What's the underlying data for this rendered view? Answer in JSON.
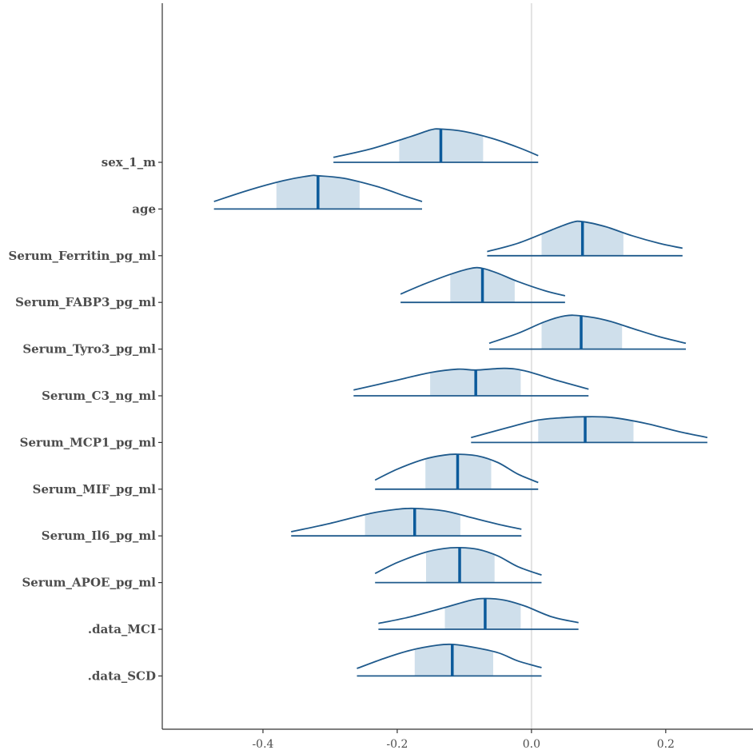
{
  "chart_data": {
    "type": "ridgeline",
    "xlim": [
      -0.55,
      0.33
    ],
    "x_ticks": [
      {
        "value": -0.4,
        "label": "-0.4"
      },
      {
        "value": -0.2,
        "label": "-0.2"
      },
      {
        "value": 0.0,
        "label": "0.0"
      },
      {
        "value": 0.2,
        "label": "0.2"
      }
    ],
    "reference_line": 0.0,
    "grid": false,
    "colors": {
      "line": "#1f5a8c",
      "fill": "#cfdfeb",
      "median": "#0b5a9b",
      "ref": "#e2e2e2",
      "axis": "#333333"
    },
    "series": [
      {
        "label": "sex_1_m",
        "min": -0.295,
        "max": 0.01,
        "q_low": -0.197,
        "q_high": -0.072,
        "median": -0.135,
        "density": [
          [
            -0.295,
            0.12
          ],
          [
            -0.24,
            0.32
          ],
          [
            -0.18,
            0.62
          ],
          [
            -0.15,
            0.78
          ],
          [
            -0.135,
            0.8
          ],
          [
            -0.1,
            0.74
          ],
          [
            -0.06,
            0.58
          ],
          [
            -0.02,
            0.36
          ],
          [
            0.01,
            0.16
          ]
        ]
      },
      {
        "label": "age",
        "min": -0.473,
        "max": -0.163,
        "q_low": -0.38,
        "q_high": -0.256,
        "median": -0.318,
        "density": [
          [
            -0.473,
            0.18
          ],
          [
            -0.42,
            0.46
          ],
          [
            -0.37,
            0.68
          ],
          [
            -0.33,
            0.8
          ],
          [
            -0.318,
            0.8
          ],
          [
            -0.28,
            0.74
          ],
          [
            -0.23,
            0.54
          ],
          [
            -0.19,
            0.32
          ],
          [
            -0.163,
            0.18
          ]
        ]
      },
      {
        "label": "Serum_Ferritin_pg_ml",
        "min": -0.066,
        "max": 0.225,
        "q_low": 0.015,
        "q_high": 0.137,
        "median": 0.076,
        "density": [
          [
            -0.066,
            0.1
          ],
          [
            -0.02,
            0.3
          ],
          [
            0.03,
            0.62
          ],
          [
            0.06,
            0.8
          ],
          [
            0.076,
            0.82
          ],
          [
            0.11,
            0.7
          ],
          [
            0.15,
            0.48
          ],
          [
            0.19,
            0.3
          ],
          [
            0.225,
            0.18
          ]
        ]
      },
      {
        "label": "Serum_FABP3_pg_ml",
        "min": -0.195,
        "max": 0.05,
        "q_low": -0.121,
        "q_high": -0.025,
        "median": -0.073,
        "density": [
          [
            -0.195,
            0.2
          ],
          [
            -0.16,
            0.44
          ],
          [
            -0.12,
            0.68
          ],
          [
            -0.09,
            0.82
          ],
          [
            -0.073,
            0.82
          ],
          [
            -0.05,
            0.7
          ],
          [
            -0.02,
            0.5
          ],
          [
            0.02,
            0.28
          ],
          [
            0.05,
            0.16
          ]
        ]
      },
      {
        "label": "Serum_Tyro3_pg_ml",
        "min": -0.063,
        "max": 0.23,
        "q_low": 0.015,
        "q_high": 0.135,
        "median": 0.074,
        "density": [
          [
            -0.063,
            0.14
          ],
          [
            -0.02,
            0.38
          ],
          [
            0.02,
            0.66
          ],
          [
            0.05,
            0.8
          ],
          [
            0.074,
            0.8
          ],
          [
            0.11,
            0.7
          ],
          [
            0.15,
            0.5
          ],
          [
            0.19,
            0.3
          ],
          [
            0.23,
            0.14
          ]
        ]
      },
      {
        "label": "Serum_C3_ng_ml",
        "min": -0.265,
        "max": 0.085,
        "q_low": -0.151,
        "q_high": -0.016,
        "median": -0.083,
        "density": [
          [
            -0.265,
            0.14
          ],
          [
            -0.21,
            0.34
          ],
          [
            -0.15,
            0.56
          ],
          [
            -0.11,
            0.64
          ],
          [
            -0.083,
            0.62
          ],
          [
            -0.04,
            0.66
          ],
          [
            -0.01,
            0.6
          ],
          [
            0.04,
            0.36
          ],
          [
            0.085,
            0.16
          ]
        ]
      },
      {
        "label": "Serum_MCP1_pg_ml",
        "min": -0.09,
        "max": 0.262,
        "q_low": 0.01,
        "q_high": 0.152,
        "median": 0.08,
        "density": [
          [
            -0.09,
            0.12
          ],
          [
            -0.03,
            0.38
          ],
          [
            0.01,
            0.54
          ],
          [
            0.05,
            0.6
          ],
          [
            0.08,
            0.62
          ],
          [
            0.12,
            0.6
          ],
          [
            0.17,
            0.46
          ],
          [
            0.22,
            0.26
          ],
          [
            0.262,
            0.12
          ]
        ]
      },
      {
        "label": "Serum_MIF_pg_ml",
        "min": -0.233,
        "max": 0.01,
        "q_low": -0.158,
        "q_high": -0.06,
        "median": -0.11,
        "density": [
          [
            -0.233,
            0.22
          ],
          [
            -0.2,
            0.48
          ],
          [
            -0.16,
            0.72
          ],
          [
            -0.13,
            0.82
          ],
          [
            -0.11,
            0.84
          ],
          [
            -0.08,
            0.8
          ],
          [
            -0.05,
            0.64
          ],
          [
            -0.02,
            0.36
          ],
          [
            0.01,
            0.16
          ]
        ]
      },
      {
        "label": "Serum_Il6_pg_ml",
        "min": -0.358,
        "max": -0.015,
        "q_low": -0.248,
        "q_high": -0.106,
        "median": -0.174,
        "density": [
          [
            -0.358,
            0.1
          ],
          [
            -0.3,
            0.3
          ],
          [
            -0.24,
            0.54
          ],
          [
            -0.2,
            0.64
          ],
          [
            -0.174,
            0.66
          ],
          [
            -0.13,
            0.6
          ],
          [
            -0.09,
            0.44
          ],
          [
            -0.05,
            0.28
          ],
          [
            -0.015,
            0.16
          ]
        ]
      },
      {
        "label": "Serum_APOE_pg_ml",
        "min": -0.233,
        "max": 0.015,
        "q_low": -0.157,
        "q_high": -0.055,
        "median": -0.107,
        "density": [
          [
            -0.233,
            0.22
          ],
          [
            -0.2,
            0.48
          ],
          [
            -0.16,
            0.72
          ],
          [
            -0.13,
            0.82
          ],
          [
            -0.107,
            0.84
          ],
          [
            -0.08,
            0.8
          ],
          [
            -0.05,
            0.64
          ],
          [
            -0.02,
            0.38
          ],
          [
            0.015,
            0.18
          ]
        ]
      },
      {
        "label": ".data_MCI",
        "min": -0.228,
        "max": 0.07,
        "q_low": -0.129,
        "q_high": -0.016,
        "median": -0.069,
        "density": [
          [
            -0.228,
            0.14
          ],
          [
            -0.18,
            0.3
          ],
          [
            -0.13,
            0.52
          ],
          [
            -0.09,
            0.7
          ],
          [
            -0.069,
            0.74
          ],
          [
            -0.04,
            0.7
          ],
          [
            -0.01,
            0.56
          ],
          [
            0.03,
            0.3
          ],
          [
            0.07,
            0.16
          ]
        ]
      },
      {
        "label": ".data_SCD",
        "min": -0.26,
        "max": 0.015,
        "q_low": -0.174,
        "q_high": -0.057,
        "median": -0.118,
        "density": [
          [
            -0.26,
            0.18
          ],
          [
            -0.22,
            0.42
          ],
          [
            -0.18,
            0.62
          ],
          [
            -0.14,
            0.74
          ],
          [
            -0.118,
            0.76
          ],
          [
            -0.09,
            0.7
          ],
          [
            -0.05,
            0.56
          ],
          [
            -0.02,
            0.36
          ],
          [
            0.015,
            0.2
          ]
        ]
      }
    ]
  }
}
